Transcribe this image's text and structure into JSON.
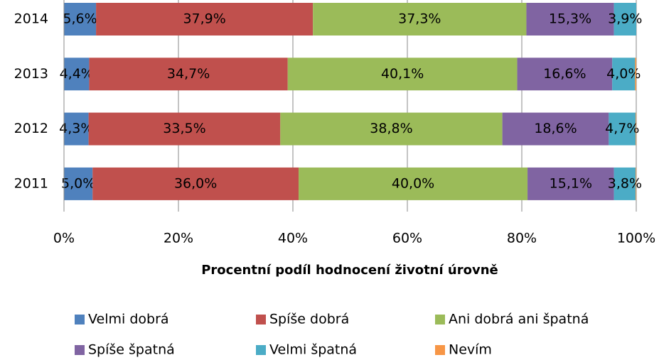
{
  "chart_data": {
    "type": "stacked_barh",
    "categories": [
      "2014",
      "2013",
      "2012",
      "2011"
    ],
    "xlabel": "Procentní podíl hodnocení životní úrovně",
    "xlim": [
      0,
      100
    ],
    "xticks": [
      {
        "value": 0,
        "label": "0%"
      },
      {
        "value": 20,
        "label": "20%"
      },
      {
        "value": 40,
        "label": "40%"
      },
      {
        "value": 60,
        "label": "60%"
      },
      {
        "value": 80,
        "label": "80%"
      },
      {
        "value": 100,
        "label": "100%"
      }
    ],
    "grid": true,
    "legend": "bottom",
    "series": [
      {
        "name": "Velmi dobrá",
        "color": "#4f81bd",
        "values": [
          5.6,
          4.4,
          4.3,
          5.0
        ],
        "value_labels": [
          "5,6%",
          "4,4%",
          "4,3%",
          "5,0%"
        ]
      },
      {
        "name": "Spíše dobrá",
        "color": "#c0504d",
        "values": [
          37.9,
          34.7,
          33.5,
          36.0
        ],
        "value_labels": [
          "37,9%",
          "34,7%",
          "33,5%",
          "36,0%"
        ]
      },
      {
        "name": "Ani dobrá ani špatná",
        "color": "#9bbb59",
        "values": [
          37.3,
          40.1,
          38.8,
          40.0
        ],
        "value_labels": [
          "37,3%",
          "40,1%",
          "38,8%",
          "40,0%"
        ]
      },
      {
        "name": "Spíše špatná",
        "color": "#8064a2",
        "values": [
          15.3,
          16.6,
          18.6,
          15.1
        ],
        "value_labels": [
          "15,3%",
          "16,6%",
          "18,6%",
          "15,1%"
        ]
      },
      {
        "name": "Velmi špatná",
        "color": "#4bacc6",
        "values": [
          3.9,
          4.0,
          4.7,
          3.8
        ],
        "value_labels": [
          "3,9%",
          "4,0%",
          "4,7%",
          "3,8%"
        ]
      },
      {
        "name": "Nevím",
        "color": "#f79646",
        "values": [
          0,
          0.2,
          0.1,
          0.1
        ]
      }
    ]
  }
}
